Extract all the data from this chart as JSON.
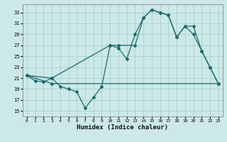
{
  "xlabel": "Humidex (Indice chaleur)",
  "bg_color": "#cce9e8",
  "grid_color": "#aad4d3",
  "line_color": "#1a6b6b",
  "xlim": [
    -0.5,
    23.5
  ],
  "ylim": [
    14,
    34.5
  ],
  "yticks": [
    15,
    17,
    19,
    21,
    23,
    25,
    27,
    29,
    31,
    33
  ],
  "xticks": [
    0,
    1,
    2,
    3,
    4,
    5,
    6,
    7,
    8,
    9,
    10,
    11,
    12,
    13,
    14,
    15,
    16,
    17,
    18,
    19,
    20,
    21,
    22,
    23
  ],
  "series1_x": [
    0,
    1,
    2,
    3,
    4,
    5,
    6,
    7,
    8,
    9,
    10,
    11,
    12,
    13,
    14,
    15,
    16,
    17,
    18,
    19,
    20,
    21,
    22,
    23
  ],
  "series1_y": [
    21.5,
    20.5,
    20.3,
    21.0,
    19.5,
    19.0,
    18.5,
    15.5,
    17.5,
    19.5,
    27.0,
    26.5,
    24.5,
    29.0,
    32.0,
    33.5,
    33.0,
    32.5,
    28.5,
    30.5,
    29.0,
    26.0,
    23.0,
    20.0
  ],
  "series2_x": [
    0,
    3,
    10,
    11,
    13,
    14,
    15,
    16,
    17,
    18,
    19,
    20,
    21,
    22,
    23
  ],
  "series2_y": [
    21.5,
    21.0,
    27.0,
    27.0,
    27.0,
    32.0,
    33.5,
    33.0,
    32.5,
    28.5,
    30.5,
    30.5,
    26.0,
    23.0,
    20.0
  ],
  "series3_x": [
    0,
    3,
    23
  ],
  "series3_y": [
    21.5,
    20.0,
    20.0
  ]
}
